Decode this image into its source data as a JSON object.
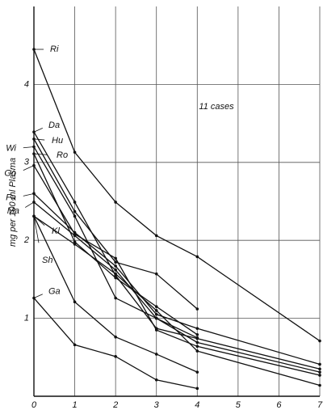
{
  "chart_data": {
    "type": "line",
    "y_label": "mg per 100 ml Plasma",
    "annotation": "11 cases",
    "xlim": [
      0,
      7
    ],
    "xticks": [
      0,
      1,
      2,
      3,
      4,
      5,
      6,
      7
    ],
    "ylim": [
      0,
      5
    ],
    "yticks": [
      1,
      2,
      3,
      4
    ],
    "grid": true,
    "color": "#111111",
    "series": [
      {
        "name": "Ri",
        "x": [
          0,
          1,
          2,
          3,
          4,
          7
        ],
        "values": [
          4.45,
          3.13,
          2.49,
          2.06,
          1.79,
          0.71
        ]
      },
      {
        "name": "Da",
        "x": [
          0,
          1,
          2,
          3,
          4,
          7
        ],
        "values": [
          3.39,
          2.49,
          1.55,
          0.87,
          0.74,
          0.35
        ]
      },
      {
        "name": "Hu",
        "x": [
          0,
          1,
          2,
          3,
          4
        ],
        "values": [
          3.3,
          2.37,
          1.72,
          1.57,
          1.12
        ]
      },
      {
        "name": "Wi",
        "x": [
          0,
          1,
          2,
          3,
          4,
          7
        ],
        "values": [
          3.2,
          2.31,
          1.26,
          1.0,
          0.69,
          0.31
        ]
      },
      {
        "name": "Ro",
        "x": [
          0,
          1,
          2,
          3,
          4
        ],
        "values": [
          3.11,
          1.98,
          1.52,
          1.15,
          0.79
        ]
      },
      {
        "name": "Go",
        "x": [
          0,
          1,
          2,
          3,
          4,
          7
        ],
        "values": [
          2.96,
          2.08,
          1.77,
          0.85,
          0.64,
          0.27
        ]
      },
      {
        "name": "Fa",
        "x": [
          0,
          1,
          2,
          3,
          4,
          7
        ],
        "values": [
          2.6,
          2.1,
          1.67,
          1.05,
          0.87,
          0.41
        ]
      },
      {
        "name": "Ma",
        "x": [
          0,
          1,
          2,
          3,
          4
        ],
        "values": [
          2.49,
          2.06,
          1.62,
          1.0,
          0.75
        ]
      },
      {
        "name": "Kl",
        "x": [
          0,
          1,
          2,
          3,
          4,
          7
        ],
        "values": [
          2.31,
          1.95,
          1.57,
          1.1,
          0.58,
          0.14
        ]
      },
      {
        "name": "Sh",
        "x": [
          0,
          1,
          2,
          3,
          4
        ],
        "values": [
          2.31,
          1.21,
          0.76,
          0.54,
          0.31
        ]
      },
      {
        "name": "Ga",
        "x": [
          0,
          1,
          2,
          3,
          4
        ],
        "values": [
          1.26,
          0.66,
          0.51,
          0.21,
          0.1
        ]
      }
    ]
  }
}
